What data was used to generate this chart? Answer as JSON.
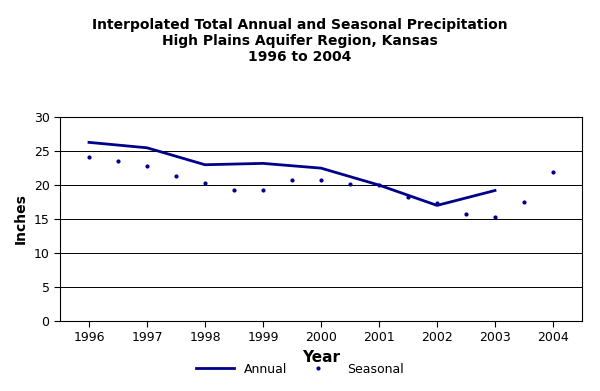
{
  "annual_x": [
    1996,
    1997,
    1998,
    1999,
    2000,
    2001,
    2002,
    2003
  ],
  "annual_y": [
    26.3,
    25.5,
    23.0,
    23.2,
    22.5,
    20.0,
    17.0,
    19.2
  ],
  "seasonal_x": [
    1996,
    1996.5,
    1997,
    1997.5,
    1998,
    1998.5,
    1999,
    1999.5,
    2000,
    2000.5,
    2001,
    2001.5,
    2002,
    2002.5,
    2003,
    2003.5,
    2004
  ],
  "seasonal_y": [
    24.2,
    23.5,
    22.8,
    21.3,
    20.3,
    19.3,
    19.2,
    20.8,
    20.8,
    20.2,
    20.0,
    18.2,
    17.3,
    15.8,
    15.3,
    17.5,
    22.0
  ],
  "line_color": "#00008B",
  "title_line1": "Interpolated Total Annual and Seasonal Precipitation",
  "title_line2": "High Plains Aquifer Region, Kansas",
  "title_line3": "1996 to 2004",
  "xlabel": "Year",
  "ylabel": "Inches",
  "ylim": [
    0,
    30
  ],
  "yticks": [
    0,
    5,
    10,
    15,
    20,
    25,
    30
  ],
  "xlim": [
    1995.5,
    2004.5
  ],
  "xticks": [
    1996,
    1997,
    1998,
    1999,
    2000,
    2001,
    2002,
    2003,
    2004
  ],
  "legend_annual": "Annual",
  "legend_seasonal": "Seasonal",
  "bg_color": "#ffffff"
}
